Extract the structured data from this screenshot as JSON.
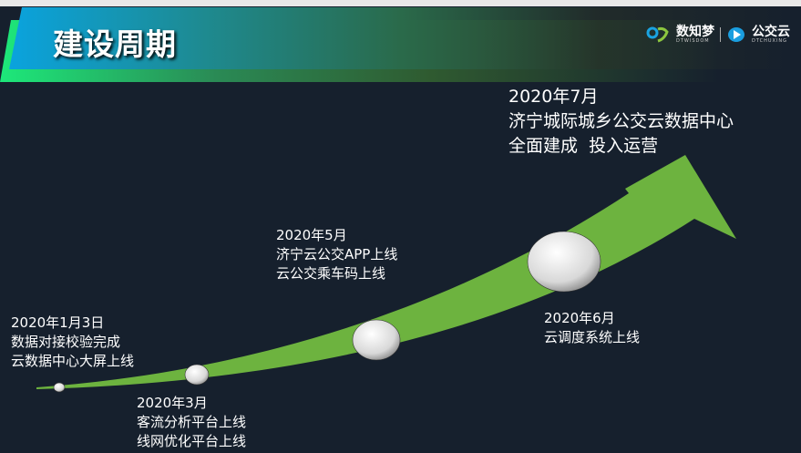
{
  "slide": {
    "title": "建设周期"
  },
  "logos": {
    "brand1": "数知梦",
    "brand1_sub": "DTWISDOM",
    "brand2": "公交云",
    "brand2_sub": "DTCHUXING"
  },
  "colors": {
    "arrow": "#6db33f",
    "background": "#16202d"
  },
  "milestones": [
    {
      "date": "2020年1月3日",
      "lines": [
        "数据对接校验完成",
        "云数据中心大屏上线"
      ]
    },
    {
      "date": "2020年3月",
      "lines": [
        "客流分析平台上线",
        "线网优化平台上线"
      ]
    },
    {
      "date": "2020年5月",
      "lines": [
        "济宁云公交APP上线",
        "云公交乘车码上线"
      ]
    },
    {
      "date": "2020年6月",
      "lines": [
        "云调度系统上线"
      ]
    },
    {
      "date": "2020年7月",
      "lines": [
        "济宁城际城乡公交云数据中心",
        "全面建成  投入运营"
      ]
    }
  ]
}
